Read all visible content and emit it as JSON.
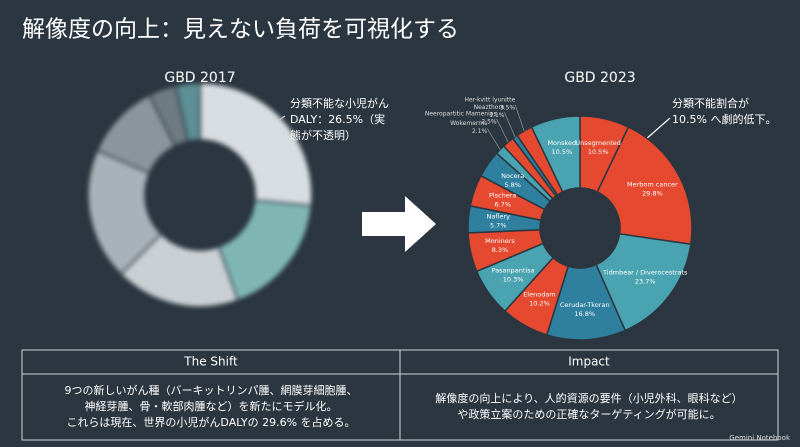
{
  "title": "解像度の向上：見えない負荷を可視化する",
  "chart_data": [
    {
      "type": "pie",
      "title": "GBD 2017",
      "values": [
        26.5,
        18,
        18,
        19,
        11,
        4,
        3.5
      ],
      "colors": [
        "#d7dde0",
        "#7fb6b4",
        "#c9d0d4",
        "#a8b2b8",
        "#8a959c",
        "#6f7b82",
        "#5c8f96"
      ],
      "annotation": [
        "分類不能な小児がん",
        "DALY：26.5%（実",
        "態が不透明）"
      ]
    },
    {
      "type": "pie",
      "title": "GBD 2023",
      "categories": [
        "Unsegmented",
        "Merbom cancer",
        "Tidmbear / Diverocestrats",
        "Cerudar-Tkoran",
        "Elenodam",
        "Pasanpantisa",
        "Moniners",
        "Naflery",
        "Plschera",
        "Nocera",
        "Wokemerms",
        "Neeropartitic Mamenias",
        "Neazthore",
        "Her-kvitt lyunitte",
        "Monsked"
      ],
      "values": [
        10.5,
        29.8,
        23.7,
        16.8,
        10.2,
        10.3,
        8.3,
        5.7,
        6.7,
        5.8,
        2.1,
        2.5,
        1.1,
        3.5,
        10.5
      ],
      "value_labels": [
        "10.5%",
        "29.8%",
        "23.7%",
        "16.8%",
        "10.2%",
        "10.3%",
        "8.3%",
        "5.7%",
        "6.7%",
        "5.8%",
        "2.1%",
        "2.5%",
        "1.1%",
        "3.5%",
        "10.5%"
      ],
      "colors": [
        "#e5492f",
        "#e5492f",
        "#4aa3b0",
        "#2f7f9f",
        "#e5492f",
        "#4aa3b0",
        "#e5492f",
        "#2f7f9f",
        "#e5492f",
        "#2f7f9f",
        "#4aa3b0",
        "#e5492f",
        "#2f7f9f",
        "#e5492f",
        "#4aa3b0"
      ],
      "annotation": [
        "分類不能割合が",
        "10.5% へ劇的低下。"
      ]
    }
  ],
  "table": {
    "headers": [
      "The Shift",
      "Impact"
    ],
    "cells": [
      [
        "9つの新しいがん種（バーキットリンパ腫、網膜芽細胞腫、",
        "神経芽腫、骨・軟部肉腫など）を新たにモデル化。",
        "これらは現在、世界の小児がんDALYの 29.6% を占める。"
      ],
      [
        "解像度の向上により、人的資源の要件（小児外科、眼科など）",
        "や政策立案のための正確なターゲティングが可能に。"
      ]
    ]
  },
  "footer": "Gemini Notebook"
}
